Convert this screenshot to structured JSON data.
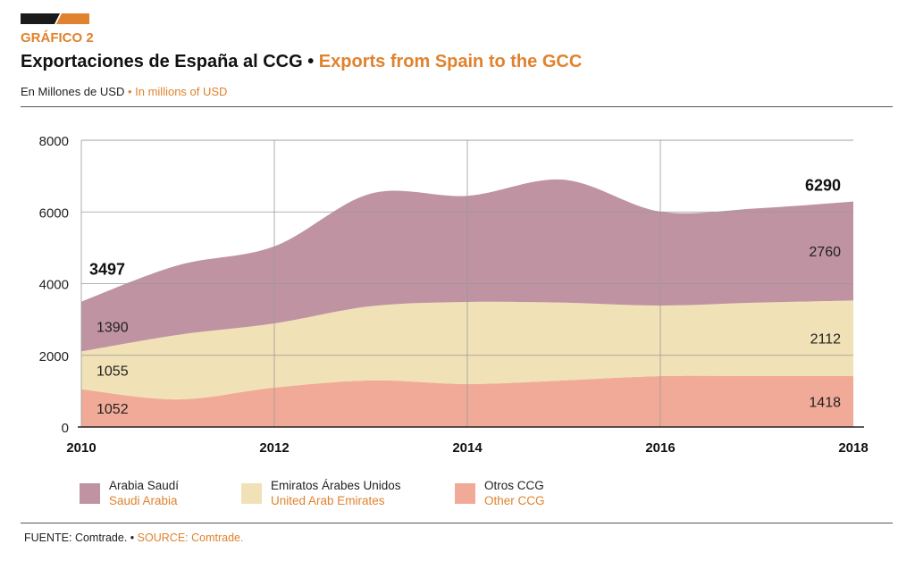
{
  "header": {
    "figure_label": "GRÁFICO 2",
    "title_es": "Exportaciones de España al CCG",
    "separator": "•",
    "title_en": "Exports from Spain to the GCC",
    "unit_es": "En Millones de USD",
    "unit_en": "In millions of USD"
  },
  "footer": {
    "source_es": "FUENTE: Comtrade.",
    "separator": "•",
    "source_en": "SOURCE: Comtrade."
  },
  "colors": {
    "accent": "#e0822e",
    "saudi": "#bf93a1",
    "uae": "#f0e1b6",
    "other": "#f2aa98"
  },
  "chart_data": {
    "type": "area",
    "stacked": true,
    "x": [
      2010,
      2011,
      2012,
      2013,
      2014,
      2015,
      2016,
      2017,
      2018
    ],
    "x_ticks": [
      "2010",
      "2012",
      "2014",
      "2016",
      "2018"
    ],
    "y_ticks": [
      "0",
      "2000",
      "4000",
      "6000",
      "8000"
    ],
    "ylim": [
      0,
      8000
    ],
    "grid": true,
    "series": [
      {
        "name_es": "Otros CCG",
        "name_en": "Other CCG",
        "values": [
          1052,
          770,
          1100,
          1300,
          1200,
          1300,
          1420,
          1420,
          1418
        ]
      },
      {
        "name_es": "Emiratos Árabes Unidos",
        "name_en": "United Arab Emirates",
        "values": [
          1055,
          1800,
          1790,
          2070,
          2290,
          2170,
          1970,
          2050,
          2112
        ]
      },
      {
        "name_es": "Arabia Saudí",
        "name_en": "Saudi Arabia",
        "values": [
          1390,
          1940,
          2150,
          3140,
          2960,
          3430,
          2620,
          2630,
          2760
        ]
      }
    ],
    "data_labels": {
      "start": {
        "other": "1052",
        "uae": "1055",
        "saudi": "1390",
        "total": "3497"
      },
      "end": {
        "other": "1418",
        "uae": "2112",
        "saudi": "2760",
        "total": "6290"
      }
    },
    "legend_placement": "bottom"
  }
}
